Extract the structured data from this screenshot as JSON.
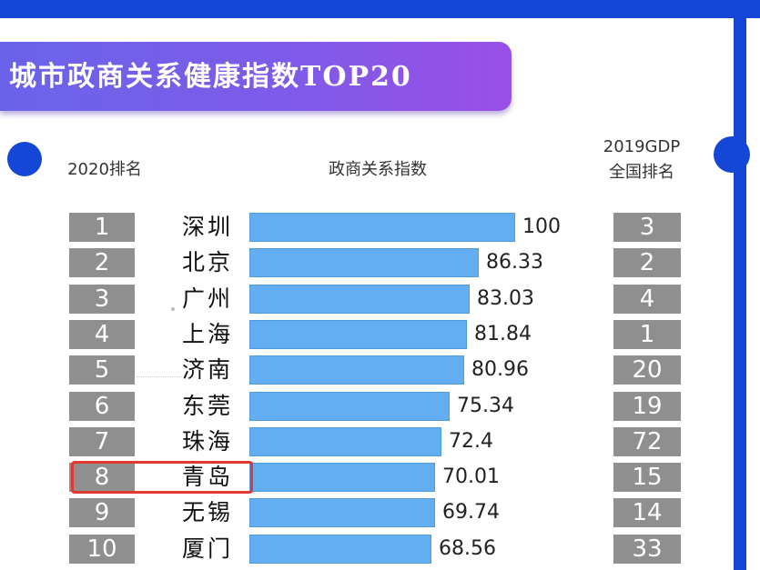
{
  "banner": {
    "title": "城市政商关系健康指数TOP20"
  },
  "headers": {
    "rank": "2020排名",
    "index": "政商关系指数",
    "gdp_line1": "2019GDP",
    "gdp_line2": "全国排名"
  },
  "colors": {
    "frame": "#1447d6",
    "banner_start": "#6a63ea",
    "banner_end": "#9a4fe6",
    "bar": "#62aef0",
    "rank_box": "#8f8f8f",
    "highlight": "#e03a2e"
  },
  "chart_data": {
    "type": "bar",
    "orientation": "horizontal",
    "categories": [
      "深圳",
      "北京",
      "广州",
      "上海",
      "济南",
      "东莞",
      "珠海",
      "青岛",
      "无锡",
      "厦门"
    ],
    "values": [
      100,
      86.33,
      83.03,
      81.84,
      80.96,
      75.34,
      72.4,
      70.01,
      69.74,
      68.56
    ],
    "value_labels": [
      "100",
      "86.33",
      "83.03",
      "81.84",
      "80.96",
      "75.34",
      "72.4",
      "70.01",
      "69.74",
      "68.56"
    ],
    "rank_2020": [
      "1",
      "2",
      "3",
      "4",
      "5",
      "6",
      "7",
      "8",
      "9",
      "10"
    ],
    "gdp_rank_2019": [
      "3",
      "2",
      "4",
      "1",
      "20",
      "19",
      "72",
      "15",
      "14",
      "33"
    ],
    "highlighted_category": "青岛",
    "xlim": [
      0,
      100
    ]
  }
}
